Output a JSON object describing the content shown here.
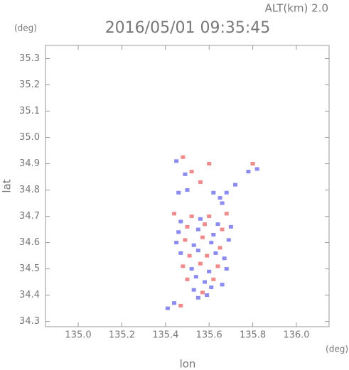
{
  "chart_data": {
    "type": "scatter",
    "top_label": "ALT(km) 2.0",
    "unit_top": "(deg)",
    "title": "2016/05/01 09:35:45",
    "y_label": "lat",
    "x_label": "lon",
    "unit_bottom": "(deg)",
    "xlim": [
      134.85,
      136.15
    ],
    "ylim": [
      34.28,
      35.35
    ],
    "xticks": [
      {
        "value": 135,
        "label": "135.0"
      },
      135.2,
      135.4,
      135.6,
      135.8,
      {
        "value": 136,
        "label": "136.0"
      }
    ],
    "yticks": [
      34.3,
      34.4,
      34.5,
      34.6,
      34.7,
      34.8,
      34.9,
      {
        "value": 35,
        "label": "35.0"
      },
      35.1,
      35.2,
      35.3
    ],
    "x": [
      135.45,
      135.48,
      135.6,
      135.49,
      135.52,
      135.78,
      135.8,
      135.82,
      135.46,
      135.5,
      135.62,
      135.65,
      135.68,
      135.72,
      135.56,
      135.66,
      135.44,
      135.47,
      135.52,
      135.56,
      135.6,
      135.64,
      135.68,
      135.46,
      135.5,
      135.55,
      135.58,
      135.62,
      135.66,
      135.7,
      135.45,
      135.49,
      135.53,
      135.57,
      135.61,
      135.65,
      135.69,
      135.47,
      135.51,
      135.55,
      135.59,
      135.63,
      135.67,
      135.48,
      135.52,
      135.56,
      135.6,
      135.64,
      135.68,
      135.5,
      135.54,
      135.58,
      135.62,
      135.66,
      135.53,
      135.57,
      135.61,
      135.55,
      135.59,
      135.47,
      135.41,
      135.44
    ],
    "values": [
      34.91,
      34.925,
      34.9,
      34.86,
      34.87,
      34.87,
      34.9,
      34.88,
      34.79,
      34.8,
      34.79,
      34.77,
      34.79,
      34.82,
      34.83,
      34.75,
      34.71,
      34.68,
      34.7,
      34.69,
      34.7,
      34.67,
      34.71,
      34.64,
      34.66,
      34.65,
      34.67,
      34.63,
      34.65,
      34.66,
      34.6,
      34.61,
      34.59,
      34.62,
      34.6,
      34.58,
      34.61,
      34.56,
      34.55,
      34.57,
      34.55,
      34.56,
      34.54,
      34.51,
      34.5,
      34.52,
      34.49,
      34.51,
      34.5,
      34.46,
      34.47,
      34.45,
      34.46,
      34.44,
      34.42,
      34.41,
      34.43,
      34.39,
      34.4,
      34.36,
      34.35,
      34.37
    ],
    "colors": [
      "#8a8af0",
      "#f08a8a",
      "#f08a8a",
      "#8a8af0",
      "#f08a8a",
      "#8a8af0",
      "#f08a8a",
      "#8a8af0",
      "#8a8af0",
      "#8a8af0",
      "#8a8af0",
      "#8a8af0",
      "#8a8af0",
      "#8a8af0",
      "#f08a8a",
      "#8a8af0",
      "#f08a8a",
      "#8a8af0",
      "#f08a8a",
      "#8a8af0",
      "#f08a8a",
      "#8a8af0",
      "#f08a8a",
      "#8a8af0",
      "#f08a8a",
      "#8a8af0",
      "#f08a8a",
      "#8a8af0",
      "#f08a8a",
      "#8a8af0",
      "#8a8af0",
      "#f08a8a",
      "#8a8af0",
      "#f08a8a",
      "#8a8af0",
      "#f08a8a",
      "#8a8af0",
      "#8a8af0",
      "#f08a8a",
      "#8a8af0",
      "#f08a8a",
      "#8a8af0",
      "#8a8af0",
      "#f08a8a",
      "#8a8af0",
      "#f08a8a",
      "#8a8af0",
      "#f08a8a",
      "#8a8af0",
      "#f08a8a",
      "#8a8af0",
      "#8a8af0",
      "#f08a8a",
      "#8a8af0",
      "#8a8af0",
      "#f08a8a",
      "#8a8af0",
      "#8a8af0",
      "#8a8af0",
      "#f08a8a",
      "#8a8af0",
      "#8a8af0"
    ]
  }
}
